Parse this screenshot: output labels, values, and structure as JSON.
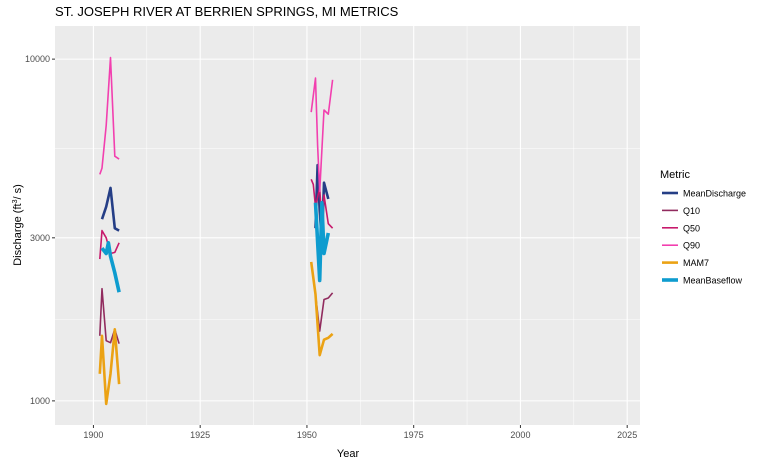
{
  "chart_data": {
    "type": "line",
    "title": "ST. JOSEPH RIVER AT BERRIEN SPRINGS, MI  METRICS",
    "xlabel": "Year",
    "ylabel_main": "Discharge (ft",
    "ylabel_sup": "3",
    "ylabel_tail": "/ s)",
    "xlim": [
      1891,
      2028
    ],
    "ylim": [
      850,
      12500
    ],
    "y_scale": "log",
    "x_ticks": [
      1900,
      1925,
      1950,
      1975,
      2000,
      2025
    ],
    "x_tick_labels": [
      "1900",
      "1925",
      "1950",
      "1975",
      "2000",
      "2025"
    ],
    "y_ticks": [
      1000,
      3000,
      10000
    ],
    "y_tick_labels": [
      "1000",
      "3000",
      "10000"
    ],
    "grid": true,
    "legend_title": "Metric",
    "legend_position": "right",
    "series": [
      {
        "name": "MeanDischarge",
        "color": "#253e86",
        "width": 2.6,
        "segments": [
          [
            [
              1902,
              3400
            ],
            [
              1903,
              3700
            ],
            [
              1904,
              4200
            ],
            [
              1905,
              3200
            ],
            [
              1906,
              3150
            ]
          ],
          [
            [
              1952,
              3200
            ],
            [
              1952.5,
              4900
            ],
            [
              1953,
              3600
            ],
            [
              1953.5,
              2900
            ],
            [
              1954,
              4350
            ],
            [
              1955,
              3900
            ]
          ]
        ]
      },
      {
        "name": "Q10",
        "color": "#912b5e",
        "width": 1.6,
        "segments": [
          [
            [
              1901.5,
              1550
            ],
            [
              1902,
              2130
            ],
            [
              1903,
              1500
            ],
            [
              1904,
              1480
            ],
            [
              1905,
              1620
            ],
            [
              1906,
              1470
            ]
          ],
          [
            [
              1952,
              2050
            ],
            [
              1953,
              1600
            ],
            [
              1954,
              1980
            ],
            [
              1955,
              2000
            ],
            [
              1956,
              2070
            ]
          ]
        ]
      },
      {
        "name": "Q50",
        "color": "#c7196c",
        "width": 1.6,
        "segments": [
          [
            [
              1901.5,
              2600
            ],
            [
              1902,
              3150
            ],
            [
              1903,
              3000
            ],
            [
              1904,
              2700
            ],
            [
              1905,
              2720
            ],
            [
              1906,
              2900
            ]
          ],
          [
            [
              1951,
              4450
            ],
            [
              1951.5,
              4300
            ],
            [
              1952,
              3700
            ],
            [
              1953,
              4200
            ],
            [
              1953.5,
              3300
            ],
            [
              1954,
              4000
            ],
            [
              1955,
              3300
            ],
            [
              1956,
              3200
            ]
          ]
        ]
      },
      {
        "name": "Q90",
        "color": "#f23faf",
        "width": 1.6,
        "segments": [
          [
            [
              1901.5,
              4600
            ],
            [
              1902,
              4800
            ],
            [
              1903,
              6400
            ],
            [
              1904,
              10100
            ],
            [
              1905,
              5200
            ],
            [
              1906,
              5100
            ]
          ],
          [
            [
              1951,
              7000
            ],
            [
              1952,
              8800
            ],
            [
              1952.5,
              5600
            ],
            [
              1953,
              4100
            ],
            [
              1954,
              7100
            ],
            [
              1955,
              6900
            ],
            [
              1956,
              8700
            ]
          ]
        ]
      },
      {
        "name": "MAM7",
        "color": "#eba214",
        "width": 2.6,
        "segments": [
          [
            [
              1901.5,
              1200
            ],
            [
              1902,
              1550
            ],
            [
              1903,
              980
            ],
            [
              1904,
              1200
            ],
            [
              1905,
              1620
            ],
            [
              1906,
              1120
            ]
          ],
          [
            [
              1951,
              2550
            ],
            [
              1952,
              2050
            ],
            [
              1953,
              1360
            ],
            [
              1954,
              1510
            ],
            [
              1955,
              1530
            ],
            [
              1956,
              1570
            ]
          ]
        ]
      },
      {
        "name": "MeanBaseflow",
        "color": "#0e9ccf",
        "width": 3.6,
        "segments": [
          [
            [
              1902,
              2800
            ],
            [
              1903,
              2700
            ],
            [
              1903.5,
              2900
            ],
            [
              1904,
              2650
            ],
            [
              1905,
              2370
            ],
            [
              1906,
              2080
            ]
          ],
          [
            [
              1952,
              3800
            ],
            [
              1953,
              2250
            ],
            [
              1953.5,
              3800
            ],
            [
              1954,
              2700
            ],
            [
              1955,
              3100
            ]
          ]
        ]
      }
    ]
  }
}
